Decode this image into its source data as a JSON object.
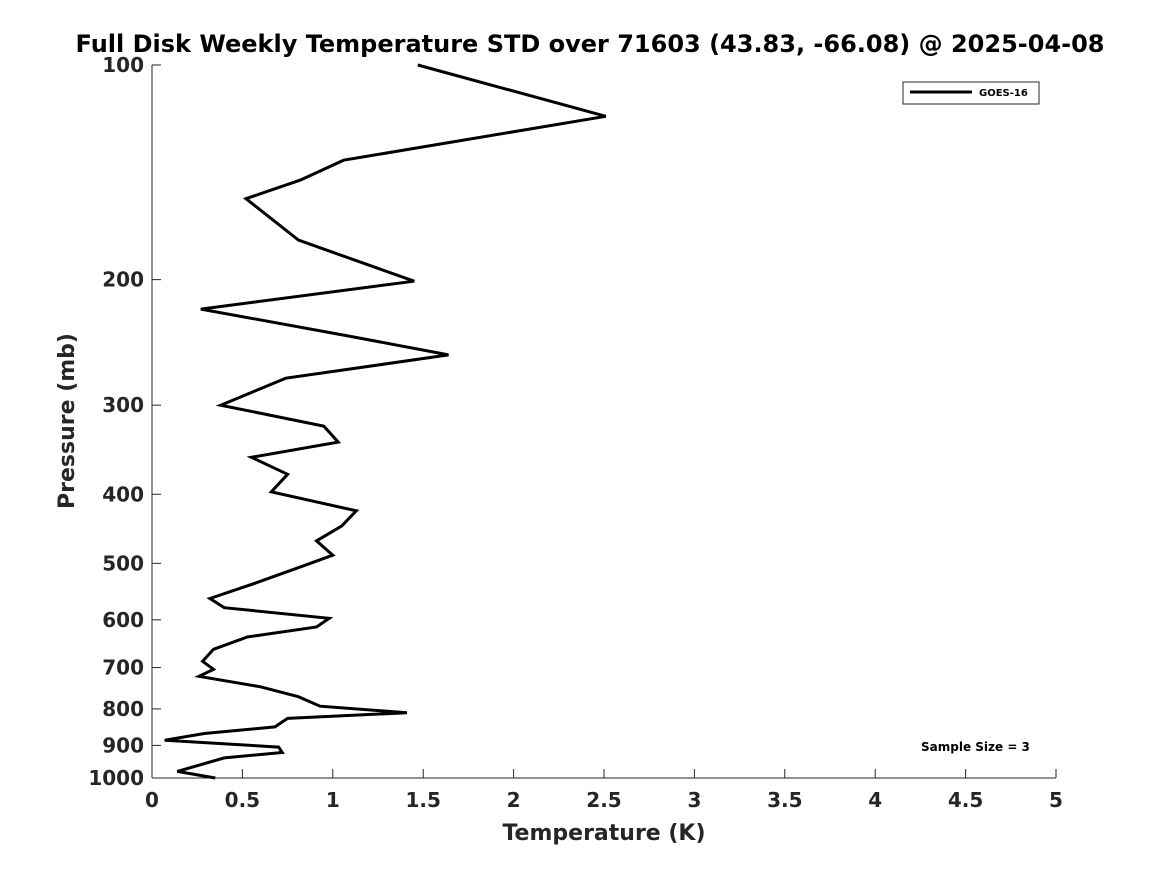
{
  "chart_data": {
    "type": "line",
    "title": "Full Disk Weekly Temperature STD over 71603 (43.83, -66.08) @ 2025-04-08",
    "xlabel": "Temperature (K)",
    "ylabel": "Pressure (mb)",
    "xlim": [
      0,
      5
    ],
    "ylim": [
      100,
      1000
    ],
    "y_scale": "log",
    "y_reversed": true,
    "grid": false,
    "x_ticks": [
      0,
      0.5,
      1,
      1.5,
      2,
      2.5,
      3,
      3.5,
      4,
      4.5,
      5
    ],
    "x_tick_labels": [
      "0",
      "0.5",
      "1",
      "1.5",
      "2",
      "2.5",
      "3",
      "3.5",
      "4",
      "4.5",
      "5"
    ],
    "y_ticks": [
      100,
      200,
      300,
      400,
      500,
      600,
      700,
      800,
      900,
      1000
    ],
    "y_tick_labels": [
      "100",
      "200",
      "300",
      "400",
      "500",
      "600",
      "700",
      "800",
      "900",
      "1000"
    ],
    "legend": {
      "placement": "top-right",
      "entries": [
        "GOES-16"
      ]
    },
    "annotation": "Sample Size = 3",
    "series": [
      {
        "name": "GOES-16",
        "color": "#000000",
        "points": [
          [
            1.47,
            100
          ],
          [
            2.51,
            118
          ],
          [
            1.06,
            136
          ],
          [
            0.82,
            145
          ],
          [
            0.52,
            154
          ],
          [
            0.81,
            176
          ],
          [
            1.45,
            201
          ],
          [
            0.27,
            220
          ],
          [
            1.09,
            240
          ],
          [
            1.64,
            255
          ],
          [
            0.74,
            275
          ],
          [
            0.38,
            300
          ],
          [
            0.95,
            321
          ],
          [
            1.03,
            338
          ],
          [
            0.55,
            355
          ],
          [
            0.75,
            375
          ],
          [
            0.66,
            397
          ],
          [
            1.13,
            422
          ],
          [
            1.05,
            443
          ],
          [
            0.91,
            465
          ],
          [
            1.0,
            487
          ],
          [
            0.8,
            508
          ],
          [
            0.57,
            533
          ],
          [
            0.32,
            560
          ],
          [
            0.4,
            577
          ],
          [
            0.98,
            597
          ],
          [
            0.91,
            614
          ],
          [
            0.53,
            634
          ],
          [
            0.34,
            660
          ],
          [
            0.28,
            686
          ],
          [
            0.34,
            704
          ],
          [
            0.26,
            720
          ],
          [
            0.6,
            745
          ],
          [
            0.81,
            769
          ],
          [
            0.93,
            793
          ],
          [
            1.41,
            810
          ],
          [
            0.75,
            825
          ],
          [
            0.68,
            848
          ],
          [
            0.29,
            866
          ],
          [
            0.07,
            885
          ],
          [
            0.7,
            905
          ],
          [
            0.72,
            921
          ],
          [
            0.4,
            937
          ],
          [
            0.14,
            979
          ],
          [
            0.35,
            1000
          ]
        ]
      }
    ]
  }
}
